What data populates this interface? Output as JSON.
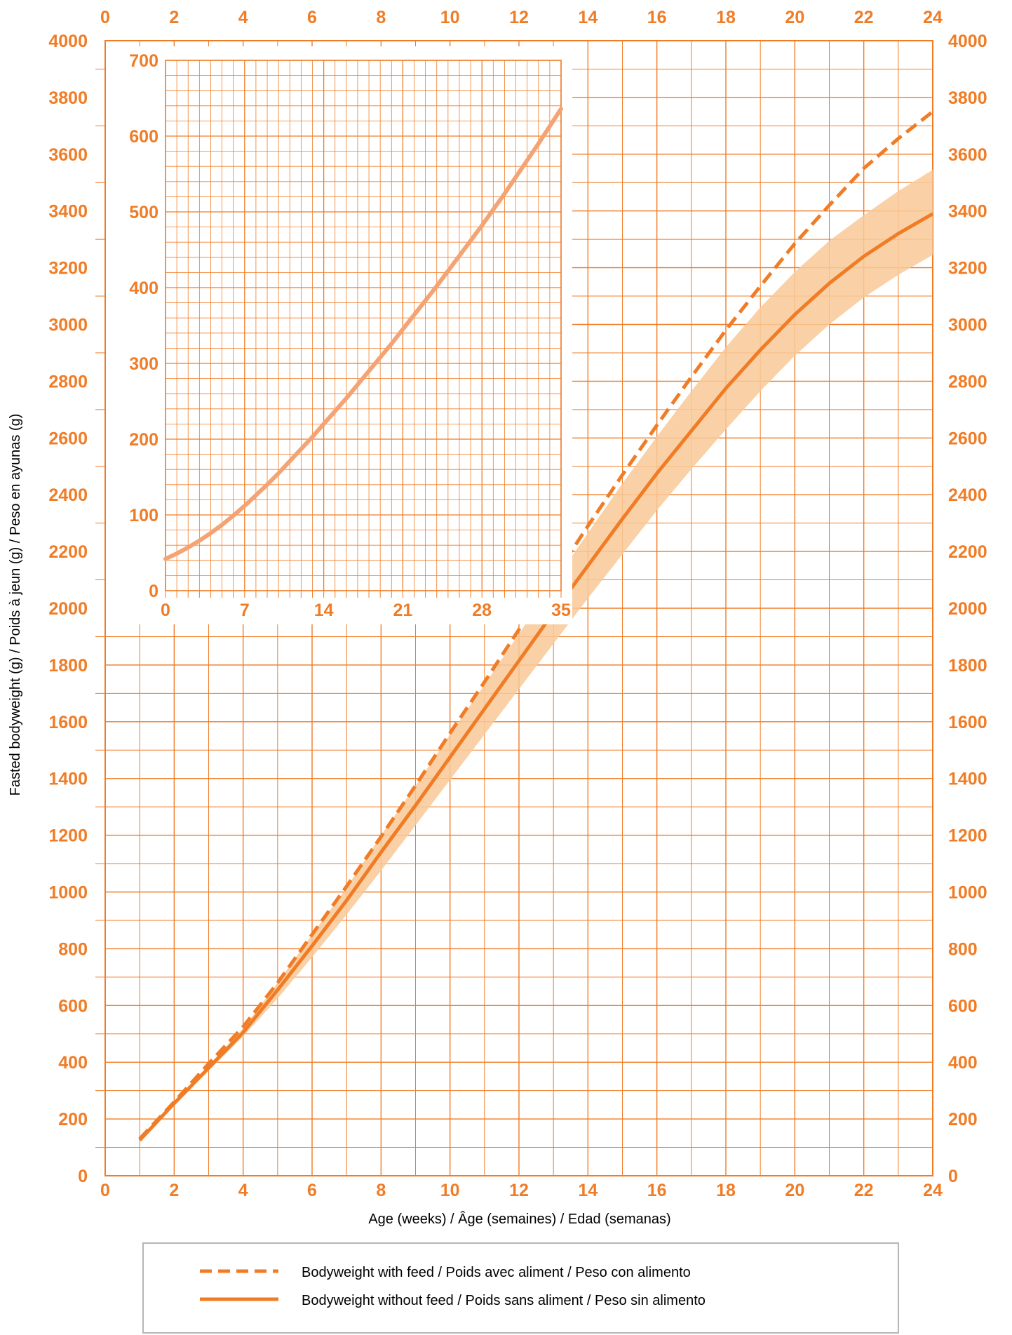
{
  "colors": {
    "accent": "#f07c26",
    "grid": "#f07c26",
    "band": "#f9c998",
    "inset_line": "#f4a474",
    "text": "#000000"
  },
  "chart_data": [
    {
      "type": "line",
      "title": "",
      "xlabel": "Age (weeks) / Âge (semaines) / Edad (semanas)",
      "ylabel": "Fasted bodyweight (g) / Poids à jeun (g) / Peso en ayunas (g)",
      "xlim": [
        0,
        24
      ],
      "ylim": [
        0,
        4000
      ],
      "x_ticks": [
        0,
        2,
        4,
        6,
        8,
        10,
        12,
        14,
        16,
        18,
        20,
        22,
        24
      ],
      "y_ticks": [
        0,
        200,
        400,
        600,
        800,
        1000,
        1200,
        1400,
        1600,
        1800,
        2000,
        2200,
        2400,
        2600,
        2800,
        3000,
        3200,
        3400,
        3600,
        3800,
        4000
      ],
      "grid": true,
      "x_ticks_top": true,
      "y_ticks_right": true,
      "legend_position": "bottom",
      "x": [
        1,
        2,
        3,
        4,
        5,
        6,
        7,
        8,
        9,
        10,
        11,
        12,
        13,
        14,
        15,
        16,
        17,
        18,
        19,
        20,
        21,
        22,
        23,
        24
      ],
      "series": [
        {
          "name": "Bodyweight with feed / Poids avec aliment / Peso con alimento",
          "style": "dashed",
          "values": [
            130,
            260,
            395,
            525,
            680,
            850,
            1020,
            1195,
            1375,
            1560,
            1740,
            1925,
            2105,
            2290,
            2470,
            2645,
            2815,
            2980,
            3135,
            3285,
            3420,
            3550,
            3655,
            3750
          ]
        },
        {
          "name": "Bodyweight without feed / Poids sans aliment / Peso sin alimento",
          "style": "solid",
          "values": [
            125,
            255,
            380,
            505,
            655,
            810,
            970,
            1140,
            1305,
            1475,
            1645,
            1815,
            1985,
            2150,
            2315,
            2475,
            2625,
            2775,
            2910,
            3035,
            3145,
            3240,
            3320,
            3390
          ],
          "band_low": [
            125,
            250,
            370,
            490,
            625,
            770,
            920,
            1075,
            1235,
            1395,
            1555,
            1715,
            1875,
            2035,
            2190,
            2345,
            2490,
            2630,
            2765,
            2890,
            3000,
            3095,
            3175,
            3245
          ],
          "band_high": [
            125,
            260,
            390,
            520,
            680,
            850,
            1015,
            1200,
            1375,
            1555,
            1730,
            1910,
            2090,
            2265,
            2440,
            2605,
            2765,
            2920,
            3060,
            3185,
            3295,
            3385,
            3470,
            3545
          ]
        }
      ]
    },
    {
      "type": "line",
      "title": "",
      "inset": true,
      "xlabel": "",
      "ylabel": "",
      "xlim": [
        0,
        35
      ],
      "ylim": [
        0,
        700
      ],
      "x_ticks": [
        0,
        7,
        14,
        21,
        28,
        35
      ],
      "y_ticks": [
        0,
        100,
        200,
        300,
        400,
        500,
        600,
        700
      ],
      "grid": true,
      "x": [
        0,
        1,
        2,
        3,
        4,
        5,
        6,
        7,
        8,
        9,
        10,
        11,
        12,
        13,
        14,
        15,
        16,
        17,
        18,
        19,
        20,
        21,
        22,
        23,
        24,
        25,
        26,
        27,
        28,
        29,
        30,
        31,
        32,
        33,
        34,
        35
      ],
      "series": [
        {
          "values": [
            42,
            49,
            57,
            66,
            76,
            87,
            99,
            112,
            126,
            140,
            155,
            171,
            187,
            203,
            220,
            237,
            254,
            272,
            290,
            308,
            326,
            345,
            364,
            383,
            402,
            422,
            442,
            462,
            482,
            503,
            524,
            546,
            568,
            590,
            613,
            636
          ]
        }
      ]
    }
  ],
  "legend": {
    "items": [
      {
        "label": "Bodyweight with feed / Poids avec aliment / Peso con alimento",
        "style": "dashed"
      },
      {
        "label": "Bodyweight without feed / Poids sans aliment / Peso sin alimento",
        "style": "solid"
      }
    ]
  }
}
